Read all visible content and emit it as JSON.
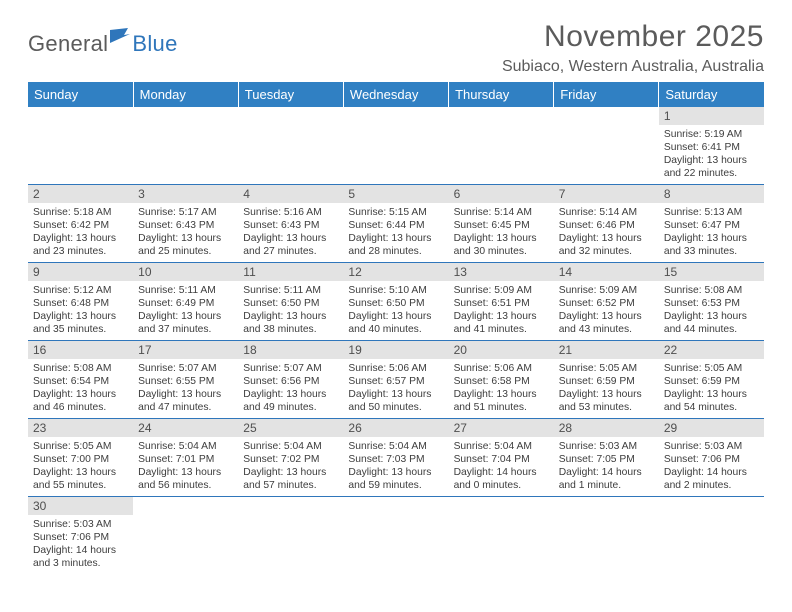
{
  "logo": {
    "text_dark": "General",
    "text_blue": "Blue",
    "flag_color": "#2f76bb"
  },
  "title": "November 2025",
  "subtitle": "Subiaco, Western Australia, Australia",
  "colors": {
    "header_bg": "#3080c3",
    "header_text": "#ffffff",
    "row_divider": "#2f76bb",
    "daynum_bg": "#e3e3e3",
    "text_gray": "#5b5b5b"
  },
  "weekdays": [
    "Sunday",
    "Monday",
    "Tuesday",
    "Wednesday",
    "Thursday",
    "Friday",
    "Saturday"
  ],
  "weeks": [
    [
      null,
      null,
      null,
      null,
      null,
      null,
      {
        "n": "1",
        "sunrise": "5:19 AM",
        "sunset": "6:41 PM",
        "daylight": "13 hours and 22 minutes."
      }
    ],
    [
      {
        "n": "2",
        "sunrise": "5:18 AM",
        "sunset": "6:42 PM",
        "daylight": "13 hours and 23 minutes."
      },
      {
        "n": "3",
        "sunrise": "5:17 AM",
        "sunset": "6:43 PM",
        "daylight": "13 hours and 25 minutes."
      },
      {
        "n": "4",
        "sunrise": "5:16 AM",
        "sunset": "6:43 PM",
        "daylight": "13 hours and 27 minutes."
      },
      {
        "n": "5",
        "sunrise": "5:15 AM",
        "sunset": "6:44 PM",
        "daylight": "13 hours and 28 minutes."
      },
      {
        "n": "6",
        "sunrise": "5:14 AM",
        "sunset": "6:45 PM",
        "daylight": "13 hours and 30 minutes."
      },
      {
        "n": "7",
        "sunrise": "5:14 AM",
        "sunset": "6:46 PM",
        "daylight": "13 hours and 32 minutes."
      },
      {
        "n": "8",
        "sunrise": "5:13 AM",
        "sunset": "6:47 PM",
        "daylight": "13 hours and 33 minutes."
      }
    ],
    [
      {
        "n": "9",
        "sunrise": "5:12 AM",
        "sunset": "6:48 PM",
        "daylight": "13 hours and 35 minutes."
      },
      {
        "n": "10",
        "sunrise": "5:11 AM",
        "sunset": "6:49 PM",
        "daylight": "13 hours and 37 minutes."
      },
      {
        "n": "11",
        "sunrise": "5:11 AM",
        "sunset": "6:50 PM",
        "daylight": "13 hours and 38 minutes."
      },
      {
        "n": "12",
        "sunrise": "5:10 AM",
        "sunset": "6:50 PM",
        "daylight": "13 hours and 40 minutes."
      },
      {
        "n": "13",
        "sunrise": "5:09 AM",
        "sunset": "6:51 PM",
        "daylight": "13 hours and 41 minutes."
      },
      {
        "n": "14",
        "sunrise": "5:09 AM",
        "sunset": "6:52 PM",
        "daylight": "13 hours and 43 minutes."
      },
      {
        "n": "15",
        "sunrise": "5:08 AM",
        "sunset": "6:53 PM",
        "daylight": "13 hours and 44 minutes."
      }
    ],
    [
      {
        "n": "16",
        "sunrise": "5:08 AM",
        "sunset": "6:54 PM",
        "daylight": "13 hours and 46 minutes."
      },
      {
        "n": "17",
        "sunrise": "5:07 AM",
        "sunset": "6:55 PM",
        "daylight": "13 hours and 47 minutes."
      },
      {
        "n": "18",
        "sunrise": "5:07 AM",
        "sunset": "6:56 PM",
        "daylight": "13 hours and 49 minutes."
      },
      {
        "n": "19",
        "sunrise": "5:06 AM",
        "sunset": "6:57 PM",
        "daylight": "13 hours and 50 minutes."
      },
      {
        "n": "20",
        "sunrise": "5:06 AM",
        "sunset": "6:58 PM",
        "daylight": "13 hours and 51 minutes."
      },
      {
        "n": "21",
        "sunrise": "5:05 AM",
        "sunset": "6:59 PM",
        "daylight": "13 hours and 53 minutes."
      },
      {
        "n": "22",
        "sunrise": "5:05 AM",
        "sunset": "6:59 PM",
        "daylight": "13 hours and 54 minutes."
      }
    ],
    [
      {
        "n": "23",
        "sunrise": "5:05 AM",
        "sunset": "7:00 PM",
        "daylight": "13 hours and 55 minutes."
      },
      {
        "n": "24",
        "sunrise": "5:04 AM",
        "sunset": "7:01 PM",
        "daylight": "13 hours and 56 minutes."
      },
      {
        "n": "25",
        "sunrise": "5:04 AM",
        "sunset": "7:02 PM",
        "daylight": "13 hours and 57 minutes."
      },
      {
        "n": "26",
        "sunrise": "5:04 AM",
        "sunset": "7:03 PM",
        "daylight": "13 hours and 59 minutes."
      },
      {
        "n": "27",
        "sunrise": "5:04 AM",
        "sunset": "7:04 PM",
        "daylight": "14 hours and 0 minutes."
      },
      {
        "n": "28",
        "sunrise": "5:03 AM",
        "sunset": "7:05 PM",
        "daylight": "14 hours and 1 minute."
      },
      {
        "n": "29",
        "sunrise": "5:03 AM",
        "sunset": "7:06 PM",
        "daylight": "14 hours and 2 minutes."
      }
    ],
    [
      {
        "n": "30",
        "sunrise": "5:03 AM",
        "sunset": "7:06 PM",
        "daylight": "14 hours and 3 minutes."
      },
      null,
      null,
      null,
      null,
      null,
      null
    ]
  ],
  "labels": {
    "sunrise": "Sunrise: ",
    "sunset": "Sunset: ",
    "daylight": "Daylight: "
  }
}
